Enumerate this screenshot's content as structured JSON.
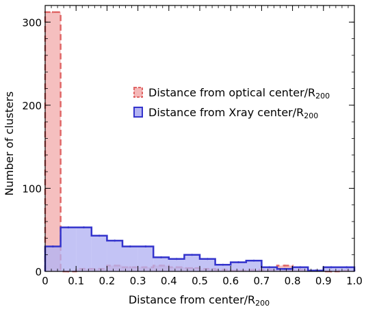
{
  "chart_data": {
    "type": "histogram",
    "xlabel_main": "Distance from center/R",
    "xlabel_sub": "200",
    "ylabel": "Number of clusters",
    "xlim": [
      0,
      1.0
    ],
    "ylim": [
      0,
      320
    ],
    "xticks": [
      "0",
      "0.1",
      "0.2",
      "0.3",
      "0.4",
      "0.5",
      "0.6",
      "0.7",
      "0.8",
      "0.9",
      "1.0"
    ],
    "yticks": [
      "0",
      "100",
      "200",
      "300"
    ],
    "bin_edges": [
      0,
      0.05,
      0.1,
      0.15,
      0.2,
      0.25,
      0.3,
      0.35,
      0.4,
      0.45,
      0.5,
      0.55,
      0.6,
      0.65,
      0.7,
      0.75,
      0.8,
      0.85,
      0.9,
      0.95,
      1.0
    ],
    "legend_position": "upper-right",
    "series": [
      {
        "name_main": "Distance from optical center/R",
        "name_sub": "200",
        "color": "#e06666",
        "fill": "#f4b8b8",
        "linestyle": "dashed",
        "values": [
          312,
          0,
          3,
          3,
          7,
          5,
          5,
          7,
          5,
          4,
          3,
          2,
          1,
          2,
          2,
          7,
          2,
          1,
          0,
          1
        ]
      },
      {
        "name_main": "Distance from Xray center/R",
        "name_sub": "200",
        "color": "#3333cc",
        "fill": "#b4b4f2",
        "linestyle": "solid",
        "values": [
          30,
          53,
          53,
          43,
          37,
          30,
          30,
          17,
          15,
          20,
          15,
          8,
          11,
          13,
          5,
          3,
          5,
          1,
          5,
          5
        ]
      }
    ]
  }
}
